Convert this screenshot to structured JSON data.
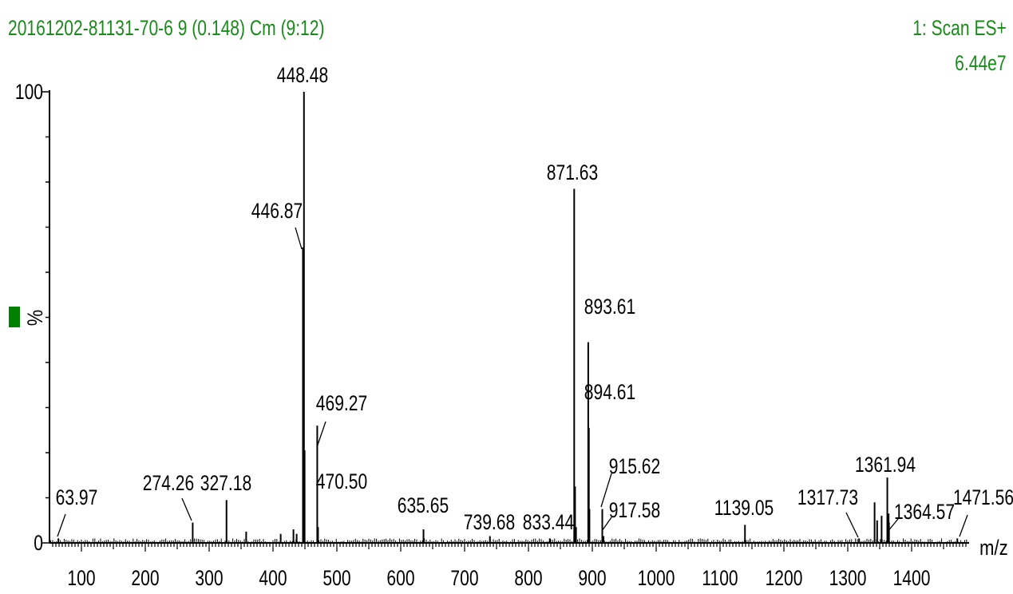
{
  "header": {
    "sample": "20161202-81131-70-6 9 (0.148) Cm (9:12)",
    "scan": "1: Scan ES+",
    "max_intensity": "6.44e7"
  },
  "colors": {
    "header_text": "#1a8a1a",
    "legend_swatch": "#008000",
    "axis": "#000000",
    "peaks": "#000000"
  },
  "chart_data": {
    "type": "bar",
    "title": "20161202-81131-70-6 9 (0.148) Cm (9:12)",
    "xlabel": "m/z",
    "ylabel": "%",
    "xlim": [
      50,
      1490
    ],
    "ylim": [
      0,
      100
    ],
    "x_ticks": [
      100,
      200,
      300,
      400,
      500,
      600,
      700,
      800,
      900,
      1000,
      1100,
      1200,
      1300,
      1400
    ],
    "y_ticks": [
      0,
      100
    ],
    "grid": false,
    "labeled_peaks": [
      {
        "mz": 63.97,
        "label": "63.97",
        "intensity": 1.0
      },
      {
        "mz": 274.26,
        "label": "274.26",
        "intensity": 4.5
      },
      {
        "mz": 327.18,
        "label": "327.18",
        "intensity": 9.5
      },
      {
        "mz": 446.87,
        "label": "446.87",
        "intensity": 65.5
      },
      {
        "mz": 448.48,
        "label": "448.48",
        "intensity": 100
      },
      {
        "mz": 469.27,
        "label": "469.27",
        "intensity": 26
      },
      {
        "mz": 470.5,
        "label": "470.50",
        "intensity": 3.5
      },
      {
        "mz": 635.65,
        "label": "635.65",
        "intensity": 3.0
      },
      {
        "mz": 739.68,
        "label": "739.68",
        "intensity": 1.5
      },
      {
        "mz": 833.44,
        "label": "833.44",
        "intensity": 1.0
      },
      {
        "mz": 871.63,
        "label": "871.63",
        "intensity": 78.5
      },
      {
        "mz": 893.61,
        "label": "893.61",
        "intensity": 44.5
      },
      {
        "mz": 894.61,
        "label": "894.61",
        "intensity": 25.5
      },
      {
        "mz": 915.62,
        "label": "915.62",
        "intensity": 7.5
      },
      {
        "mz": 917.58,
        "label": "917.58",
        "intensity": 1.5
      },
      {
        "mz": 1139.05,
        "label": "1139.05",
        "intensity": 4.0
      },
      {
        "mz": 1317.73,
        "label": "1317.73",
        "intensity": 1.0
      },
      {
        "mz": 1361.94,
        "label": "1361.94",
        "intensity": 14.5
      },
      {
        "mz": 1364.57,
        "label": "1364.57",
        "intensity": 4.5
      },
      {
        "mz": 1471.56,
        "label": "1471.56",
        "intensity": 1.0
      }
    ],
    "unlabeled_peaks": [
      {
        "mz": 358,
        "intensity": 2.5
      },
      {
        "mz": 412,
        "intensity": 2.0
      },
      {
        "mz": 432,
        "intensity": 3.0
      },
      {
        "mz": 437,
        "intensity": 2.0
      },
      {
        "mz": 449.5,
        "intensity": 20.5
      },
      {
        "mz": 873,
        "intensity": 12.5
      },
      {
        "mz": 874.5,
        "intensity": 3.5
      },
      {
        "mz": 895.5,
        "intensity": 7.5
      },
      {
        "mz": 1342,
        "intensity": 9.0
      },
      {
        "mz": 1346,
        "intensity": 5.0
      },
      {
        "mz": 1353,
        "intensity": 6.0
      },
      {
        "mz": 1364,
        "intensity": 6.5
      }
    ]
  }
}
